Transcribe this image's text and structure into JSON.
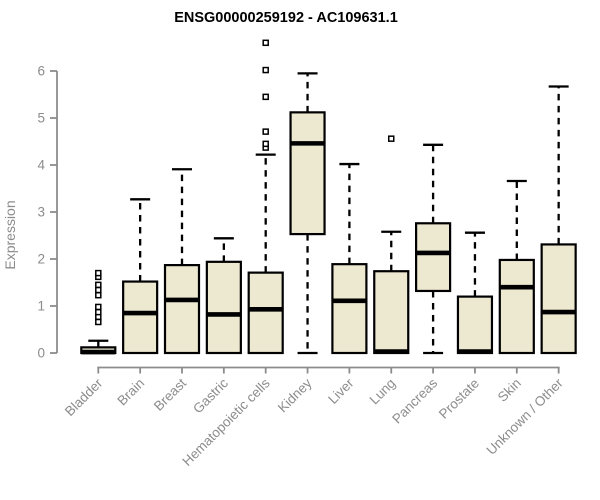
{
  "chart_data": {
    "type": "boxplot",
    "title": "ENSG00000259192 - AC109631.1",
    "ylabel": "Expression",
    "xlabel": "",
    "ylim": [
      0,
      6.7
    ],
    "yticks": [
      0,
      1,
      2,
      3,
      4,
      5,
      6
    ],
    "grid": false,
    "legend": "none",
    "categories": [
      "Bladder",
      "Brain",
      "Breast",
      "Gastric",
      "Hematopoietic cells",
      "Kidney",
      "Liver",
      "Lung",
      "Pancreas",
      "Prostate",
      "Skin",
      "Unknown / Other"
    ],
    "boxes": [
      {
        "category": "Bladder",
        "whisker_low": 0,
        "q1": 0,
        "median": 0.02,
        "q3": 0.12,
        "whisker_high": 0.26,
        "outliers": [
          0.66,
          0.77,
          0.87,
          0.98,
          1.23,
          1.34,
          1.45,
          1.62,
          1.7
        ]
      },
      {
        "category": "Brain",
        "whisker_low": 0,
        "q1": 0,
        "median": 0.85,
        "q3": 1.52,
        "whisker_high": 3.27,
        "outliers": []
      },
      {
        "category": "Breast",
        "whisker_low": 0,
        "q1": 0,
        "median": 1.13,
        "q3": 1.87,
        "whisker_high": 3.91,
        "outliers": []
      },
      {
        "category": "Gastric",
        "whisker_low": 0,
        "q1": 0,
        "median": 0.82,
        "q3": 1.94,
        "whisker_high": 2.44,
        "outliers": []
      },
      {
        "category": "Hematopoietic cells",
        "whisker_low": 0,
        "q1": 0,
        "median": 0.93,
        "q3": 1.71,
        "whisker_high": 4.22,
        "outliers": [
          4.37,
          4.45,
          4.71,
          5.45,
          6.02,
          6.6
        ]
      },
      {
        "category": "Kidney",
        "whisker_low": 0,
        "q1": 2.53,
        "median": 4.46,
        "q3": 5.12,
        "whisker_high": 5.95,
        "outliers": []
      },
      {
        "category": "Liver",
        "whisker_low": 0,
        "q1": 0,
        "median": 1.11,
        "q3": 1.89,
        "whisker_high": 4.02,
        "outliers": []
      },
      {
        "category": "Lung",
        "whisker_low": 0,
        "q1": 0,
        "median": 0.03,
        "q3": 1.74,
        "whisker_high": 2.58,
        "outliers": [
          4.56
        ]
      },
      {
        "category": "Pancreas",
        "whisker_low": 0,
        "q1": 1.32,
        "median": 2.13,
        "q3": 2.76,
        "whisker_high": 4.43,
        "outliers": []
      },
      {
        "category": "Prostate",
        "whisker_low": 0,
        "q1": 0,
        "median": 0.03,
        "q3": 1.2,
        "whisker_high": 2.56,
        "outliers": []
      },
      {
        "category": "Skin",
        "whisker_low": 0,
        "q1": 0,
        "median": 1.4,
        "q3": 1.98,
        "whisker_high": 3.66,
        "outliers": []
      },
      {
        "category": "Unknown / Other",
        "whisker_low": 0,
        "q1": 0,
        "median": 0.87,
        "q3": 2.31,
        "whisker_high": 5.67,
        "outliers": []
      }
    ],
    "colors": {
      "box_fill": "#EDE8D0",
      "box_stroke": "#000000",
      "median": "#000000",
      "whisker": "#000000",
      "outlier_stroke": "#000000",
      "outlier_fill": "#FFFFFF",
      "axis": "#8C8C8C",
      "tick_label": "#8C8C8C",
      "title": "#000000",
      "background": "#FFFFFF"
    }
  }
}
